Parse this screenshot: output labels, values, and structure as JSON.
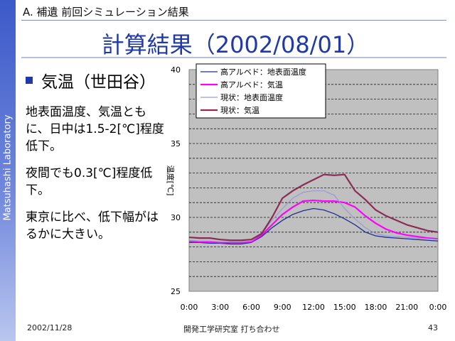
{
  "sidebar": {
    "text": "Matsuhashi Laboratory"
  },
  "header": {
    "section": "A. 補遺 前回シミュレーション結果"
  },
  "title": "計算結果（2002/08/01）",
  "bullet": "気温（世田谷）",
  "paragraphs": [
    "地表面温度、気温ともに、日中は1.5-2[℃]程度低下。",
    "夜間でも0.3[℃]程度低下。",
    "東京に比べ、低下幅がはるかに大きい。"
  ],
  "footer": {
    "date": "2002/11/28",
    "center": "開発工学研究室 打ち合わせ",
    "page": "43"
  },
  "colors": {
    "accent": "#1f3aa8",
    "plot_bg": "#c0c0c0"
  },
  "chart_data": {
    "type": "line",
    "ylabel": "温度[℃]",
    "ylim": [
      25,
      40
    ],
    "xlim": [
      0,
      24
    ],
    "x_ticks": [
      "0:00",
      "3:00",
      "6:00",
      "9:00",
      "12:00",
      "15:00",
      "18:00",
      "21:00",
      "0:00"
    ],
    "y_ticks": [
      "25",
      "30",
      "35",
      "40"
    ],
    "legend_position": "top-left",
    "x": [
      0,
      1,
      2,
      3,
      4,
      5,
      6,
      7,
      8,
      9,
      10,
      11,
      12,
      13,
      14,
      15,
      16,
      17,
      18,
      19,
      20,
      21,
      22,
      23,
      24
    ],
    "series": [
      {
        "name": "高アルベド：地表面温度",
        "color": "#1f2f8f",
        "values": [
          28.3,
          28.3,
          28.25,
          28.25,
          28.2,
          28.2,
          28.3,
          28.7,
          29.3,
          29.8,
          30.2,
          30.45,
          30.6,
          30.5,
          30.25,
          29.9,
          29.5,
          29.0,
          28.75,
          28.65,
          28.6,
          28.55,
          28.5,
          28.45,
          28.4
        ]
      },
      {
        "name": "高アルベド：気温",
        "color": "#ff00ff",
        "values": [
          28.4,
          28.35,
          28.35,
          28.3,
          28.3,
          28.3,
          28.35,
          28.8,
          29.5,
          30.2,
          30.7,
          31.1,
          31.15,
          31.1,
          31.1,
          31.0,
          30.7,
          30.1,
          29.6,
          29.2,
          28.95,
          28.8,
          28.7,
          28.6,
          28.55
        ]
      },
      {
        "name": "現状：地表面温度",
        "color": "#9a9ad6",
        "values": [
          28.45,
          28.4,
          28.4,
          28.35,
          28.35,
          28.35,
          28.4,
          28.9,
          29.8,
          30.6,
          31.3,
          31.7,
          31.8,
          31.8,
          31.5,
          30.6,
          29.9,
          29.3,
          28.9,
          28.75,
          28.7,
          28.65,
          28.6,
          28.55,
          28.5
        ]
      },
      {
        "name": "現状：気温",
        "color": "#8b2c54",
        "values": [
          28.65,
          28.6,
          28.6,
          28.5,
          28.45,
          28.45,
          28.5,
          28.9,
          30.0,
          31.3,
          31.8,
          32.2,
          32.55,
          32.9,
          32.85,
          32.9,
          31.8,
          31.2,
          30.5,
          30.1,
          29.8,
          29.5,
          29.3,
          29.1,
          29.0
        ]
      }
    ]
  }
}
